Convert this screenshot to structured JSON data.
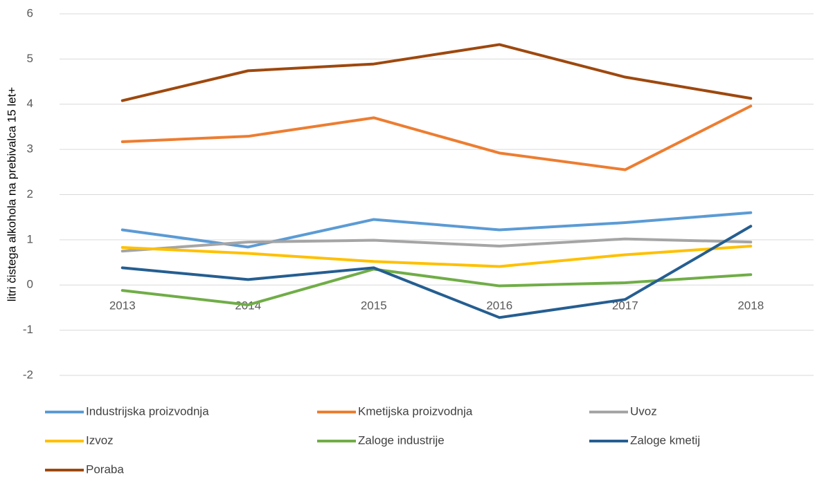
{
  "chart_data": {
    "type": "line",
    "y_label": "litri čistega alkohola na prebivalca 15 let+",
    "categories": [
      "2013",
      "2014",
      "2015",
      "2016",
      "2017",
      "2018"
    ],
    "series": [
      {
        "name": "Industrijska proizvodnja",
        "color": "#5b9bd5",
        "values": [
          1.22,
          0.84,
          1.45,
          1.22,
          1.38,
          1.6
        ]
      },
      {
        "name": "Kmetijska proizvodnja",
        "color": "#ed7d31",
        "values": [
          3.17,
          3.29,
          3.7,
          2.92,
          2.55,
          3.96
        ]
      },
      {
        "name": "Uvoz",
        "color": "#a5a5a5",
        "values": [
          0.75,
          0.95,
          0.99,
          0.86,
          1.02,
          0.95
        ]
      },
      {
        "name": "Izvoz",
        "color": "#ffc000",
        "values": [
          0.83,
          0.7,
          0.52,
          0.41,
          0.67,
          0.86
        ]
      },
      {
        "name": "Zaloge industrije",
        "color": "#70ad47",
        "values": [
          -0.12,
          -0.44,
          0.35,
          -0.02,
          0.05,
          0.23
        ]
      },
      {
        "name": "Zaloge kmetij",
        "color": "#255e91",
        "values": [
          0.38,
          0.12,
          0.38,
          -0.72,
          -0.32,
          1.3
        ]
      },
      {
        "name": "Poraba",
        "color": "#9e480e",
        "values": [
          4.08,
          4.74,
          4.89,
          5.32,
          4.6,
          4.13
        ]
      }
    ],
    "ylim": [
      -2,
      6
    ],
    "yticks": [
      -2,
      -1,
      0,
      1,
      2,
      3,
      4,
      5,
      6
    ],
    "grid": true
  }
}
